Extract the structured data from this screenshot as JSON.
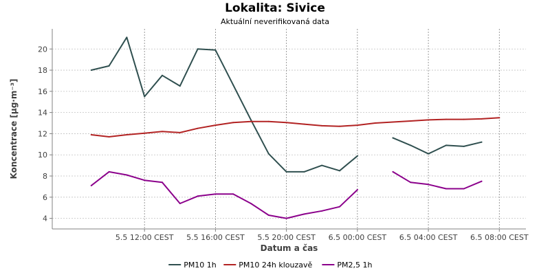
{
  "chart_data": {
    "type": "line",
    "title": "Lokalita: Sivice",
    "subtitle": "Aktuální neverifikovaná data",
    "xlabel": "Datum a čas",
    "ylabel": "Koncentrace [µg·m⁻³]",
    "ylim": [
      3,
      21.9
    ],
    "y_ticks": [
      4,
      6,
      8,
      10,
      12,
      14,
      16,
      18,
      20
    ],
    "x_range_hours": [
      -2.2,
      24.5
    ],
    "x_ticks": [
      {
        "hour": 3,
        "label": "5.5 12:00 CEST"
      },
      {
        "hour": 7,
        "label": "5.5 16:00 CEST"
      },
      {
        "hour": 11,
        "label": "5.5 20:00 CEST"
      },
      {
        "hour": 15,
        "label": "6.5 00:00 CEST"
      },
      {
        "hour": 19,
        "label": "6.5 04:00 CEST"
      },
      {
        "hour": 23,
        "label": "6.5 08:00 CEST"
      }
    ],
    "grid": true,
    "legend_position": "bottom",
    "series": [
      {
        "name": "PM10 1h",
        "color": "#2f4f4f",
        "points": [
          [
            0,
            18.0
          ],
          [
            1,
            18.4
          ],
          [
            2,
            21.1
          ],
          [
            3,
            15.5
          ],
          [
            4,
            17.5
          ],
          [
            5,
            16.5
          ],
          [
            6,
            20.0
          ],
          [
            7,
            19.9
          ],
          [
            8,
            16.6
          ],
          [
            9,
            13.3
          ],
          [
            10,
            10.1
          ],
          [
            11,
            8.4
          ],
          [
            12,
            8.4
          ],
          [
            13,
            9.0
          ],
          [
            14,
            8.5
          ],
          [
            15,
            9.9
          ],
          [
            16,
            null
          ],
          [
            17,
            11.6
          ],
          [
            18,
            10.9
          ],
          [
            19,
            10.1
          ],
          [
            20,
            10.9
          ],
          [
            21,
            10.8
          ],
          [
            22,
            11.2
          ]
        ]
      },
      {
        "name": "PM10 24h klouzavě",
        "color": "#b22222",
        "points": [
          [
            0,
            11.9
          ],
          [
            1,
            11.7
          ],
          [
            2,
            11.9
          ],
          [
            3,
            12.05
          ],
          [
            4,
            12.2
          ],
          [
            5,
            12.1
          ],
          [
            6,
            12.5
          ],
          [
            7,
            12.8
          ],
          [
            8,
            13.05
          ],
          [
            9,
            13.15
          ],
          [
            10,
            13.15
          ],
          [
            11,
            13.05
          ],
          [
            12,
            12.9
          ],
          [
            13,
            12.75
          ],
          [
            14,
            12.7
          ],
          [
            15,
            12.8
          ],
          [
            16,
            13.0
          ],
          [
            17,
            13.1
          ],
          [
            18,
            13.2
          ],
          [
            19,
            13.3
          ],
          [
            20,
            13.35
          ],
          [
            21,
            13.35
          ],
          [
            22,
            13.4
          ],
          [
            23,
            13.5
          ]
        ]
      },
      {
        "name": "PM2,5 1h",
        "color": "#8b008b",
        "points": [
          [
            0,
            7.1
          ],
          [
            1,
            8.4
          ],
          [
            2,
            8.1
          ],
          [
            3,
            7.6
          ],
          [
            4,
            7.4
          ],
          [
            5,
            5.4
          ],
          [
            6,
            6.1
          ],
          [
            7,
            6.3
          ],
          [
            8,
            6.3
          ],
          [
            9,
            5.4
          ],
          [
            10,
            4.3
          ],
          [
            11,
            4.0
          ],
          [
            12,
            4.4
          ],
          [
            13,
            4.7
          ],
          [
            14,
            5.1
          ],
          [
            15,
            6.7
          ],
          [
            16,
            null
          ],
          [
            17,
            8.4
          ],
          [
            18,
            7.4
          ],
          [
            19,
            7.2
          ],
          [
            20,
            6.8
          ],
          [
            21,
            6.8
          ],
          [
            22,
            7.5
          ]
        ]
      }
    ]
  }
}
